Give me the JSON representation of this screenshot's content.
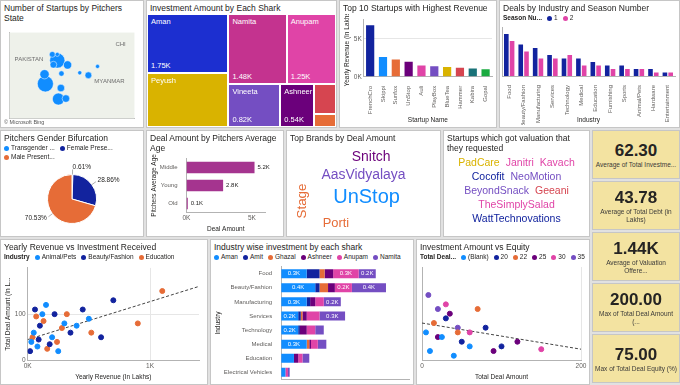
{
  "chart_data": [
    {
      "type": "bubble",
      "title": "Number of Startups by Pitchers State",
      "x": [
        77.2,
        72.9,
        77.6,
        80.3,
        88.4,
        78.5,
        75.8,
        72.6,
        75.4,
        85.3,
        91.7,
        77.2,
        78.7,
        80.9
      ],
      "values": [
        28.6,
        19.1,
        12.9,
        13.1,
        22.6,
        17.4,
        26.9,
        23.0,
        31.1,
        23.6,
        26.2,
        31.1,
        23.3,
        26.8
      ],
      "sizes": [
        40,
        45,
        25,
        10,
        8,
        10,
        8,
        15,
        6,
        3,
        3,
        3,
        5,
        12
      ],
      "color": "#118DFF",
      "xlim": [
        60,
        105
      ],
      "ylim": [
        5,
        40
      ],
      "tick_labels": false,
      "grid": false,
      "annotations": [
        {
          "text": "PAKISTAN",
          "x": 67,
          "y": 29
        },
        {
          "text": "MYANMAR",
          "x": 96,
          "y": 20
        },
        {
          "text": "CHI",
          "x": 100,
          "y": 35
        }
      ],
      "credit": "© Microsoft Bing"
    },
    {
      "type": "treemap",
      "title": "Investment Amount by Each Shark",
      "categories": [
        "Aman",
        "Peyush",
        "Namita",
        "Anupam",
        "Vineeta",
        "Ashneer",
        null,
        null
      ],
      "values": [
        1750,
        1600,
        1480,
        1250,
        820,
        540,
        240,
        100
      ],
      "value_labels": [
        "1.75K",
        null,
        "1.48K",
        "1.25K",
        "0.82K",
        "0.54K",
        null,
        null
      ],
      "colors": [
        "#1C2FD0",
        "#D9B300",
        "#C4338F",
        "#E044A7",
        "#744EC2",
        "#6B007B",
        "#D64550",
        "#E66C37"
      ],
      "data_labels": true
    },
    {
      "type": "bar",
      "title": "Top 10 Startups with Highest Revenue",
      "x_label": "Startup Name",
      "y_label": "Yearly Revenue (In Lakhs)",
      "categories": [
        "FrenchCro",
        "Skippi",
        "Sunfox",
        "UnStop",
        "Auli",
        "PlayBox",
        "BlueTea",
        "Hammer",
        "Kabira",
        "Gopal"
      ],
      "values": [
        6800,
        2600,
        2300,
        2000,
        1500,
        1400,
        1300,
        1200,
        1100,
        1000
      ],
      "colors": [
        "#12239E",
        "#118DFF",
        "#E66C37",
        "#6B007B",
        "#E044A7",
        "#744EC2",
        "#D9B300",
        "#D64550",
        "#197278",
        "#1AAB40"
      ],
      "ylim": [
        0,
        7500
      ],
      "yticks": [
        {
          "value": 0,
          "label": "0K"
        },
        {
          "value": 5000,
          "label": "5K"
        }
      ],
      "grid": true
    },
    {
      "type": "bar",
      "title": "Deals by Industry and Season Number",
      "x_label": "Industry",
      "legend": "top",
      "legend_title": "Season Nu...",
      "categories": [
        "Food",
        "Beauty/Fashion",
        "Manufacturing",
        "Services",
        "Technology",
        "Medical",
        "Education",
        "Furnishing",
        "Sports",
        "Animal/Pets",
        "Hardware",
        "Entertainment"
      ],
      "series": [
        {
          "name": "1",
          "color": "#12239E",
          "values": [
            12,
            9,
            8,
            6,
            5,
            5,
            4,
            3,
            3,
            2,
            2,
            1
          ]
        },
        {
          "name": "2",
          "color": "#E044A7",
          "values": [
            10,
            7,
            5,
            5,
            6,
            3,
            3,
            2,
            2,
            2,
            1,
            1
          ]
        }
      ],
      "ylim": [
        0,
        14
      ],
      "tick_labels": "x",
      "grid": false
    },
    {
      "type": "pie",
      "title": "Pitchers Gender Bifurcation",
      "legend": "top",
      "categories": [
        "Transgender ...",
        "Female Prese...",
        "Male Present..."
      ],
      "values": [
        0.61,
        28.86,
        70.53
      ],
      "value_labels": [
        "0.61%",
        "28.86%",
        "70.53%"
      ],
      "colors": [
        "#118DFF",
        "#12239E",
        "#E66C37"
      ],
      "data_labels": true
    },
    {
      "type": "bar",
      "orientation": "horizontal",
      "title": "Deal Amount by Pitchers Average Age",
      "x_label": "Deal Amount",
      "y_label": "Pitchers Average Age",
      "categories": [
        "Middle",
        "Young",
        "Old"
      ],
      "values": [
        5200,
        2800,
        100
      ],
      "value_labels": [
        "5.2K",
        "2.8K",
        "0.1K"
      ],
      "color": "#A5348F",
      "xlim": [
        0,
        6000
      ],
      "xticks": [
        {
          "value": 0,
          "label": "0K"
        },
        {
          "value": 5000,
          "label": "5K"
        }
      ],
      "data_labels": true,
      "grid": false
    },
    {
      "type": "scatter",
      "title": "Yearly Revenue vs Investment Received",
      "x_label": "Yearly Revenue (In Lakhs)",
      "y_label": "Total Deal Amount (In L...",
      "legend": "top",
      "legend_title": "Industry",
      "marker": "circle",
      "series": [
        {
          "name": "Animal/Pets",
          "color": "#118DFF",
          "x": [
            50,
            120,
            300,
            30,
            200,
            400,
            80,
            150,
            250,
            500
          ],
          "values": [
            60,
            100,
            80,
            40,
            50,
            75,
            30,
            120,
            20,
            90
          ]
        },
        {
          "name": "Beauty/Fashion",
          "color": "#12239E",
          "x": [
            100,
            60,
            350,
            180,
            220,
            600,
            20,
            450,
            90,
            700
          ],
          "values": [
            75,
            110,
            60,
            35,
            100,
            50,
            20,
            110,
            45,
            130
          ]
        },
        {
          "name": "Education",
          "color": "#E66C37",
          "x": [
            40,
            130,
            280,
            160,
            320,
            520,
            70,
            240,
            900,
            1100
          ],
          "values": [
            50,
            85,
            70,
            25,
            100,
            60,
            95,
            40,
            80,
            150
          ]
        }
      ],
      "trend": {
        "x": [
          0,
          1400
        ],
        "values": [
          45,
          160
        ],
        "line_style": "dashed"
      },
      "xlim": [
        0,
        1400
      ],
      "xticks": [
        {
          "value": 0,
          "label": "0K"
        },
        {
          "value": 1000,
          "label": "1K"
        }
      ],
      "ylim": [
        0,
        200
      ],
      "yticks": [
        0,
        100
      ],
      "grid": true
    },
    {
      "type": "bar",
      "orientation": "horizontal",
      "stacked": true,
      "title": "Industry wise investment by each shark",
      "y_label": "Industry",
      "legend": "top",
      "categories": [
        "Food",
        "Beauty/Fashion",
        "Manufacturing",
        "Services",
        "Technology",
        "Medical",
        "Education",
        "Electrical Vehicles"
      ],
      "series": [
        {
          "name": "Aman",
          "color": "#118DFF",
          "values": [
            300,
            400,
            300,
            200,
            200,
            300,
            150,
            50
          ],
          "value_labels": [
            "0.3K",
            "0.4K",
            "0.3K",
            "0.2K",
            "0.2K",
            "0.3K",
            null,
            null
          ]
        },
        {
          "name": "Amit",
          "color": "#12239E",
          "values": [
            150,
            50,
            40,
            30,
            20,
            0,
            0,
            0
          ],
          "value_labels": [
            null,
            null,
            null,
            null,
            null,
            null,
            null,
            null
          ]
        },
        {
          "name": "Ghazal",
          "color": "#E66C37",
          "values": [
            60,
            100,
            0,
            20,
            0,
            30,
            0,
            0
          ],
          "value_labels": [
            null,
            null,
            null,
            null,
            null,
            null,
            null,
            null
          ]
        },
        {
          "name": "Ashneer",
          "color": "#6B007B",
          "values": [
            100,
            80,
            60,
            50,
            80,
            20,
            50,
            0
          ],
          "value_labels": [
            null,
            null,
            null,
            null,
            null,
            null,
            null,
            null
          ]
        },
        {
          "name": "Anupam",
          "color": "#E044A7",
          "values": [
            300,
            200,
            100,
            150,
            100,
            80,
            50,
            30
          ],
          "value_labels": [
            "0.3K",
            "0.2K",
            null,
            null,
            null,
            null,
            null,
            null
          ]
        },
        {
          "name": "Namita",
          "color": "#744EC2",
          "values": [
            200,
            400,
            200,
            300,
            100,
            100,
            80,
            20
          ],
          "value_labels": [
            "0.2K",
            "0.4K",
            "0.2K",
            "0.3K",
            null,
            null,
            null,
            null
          ]
        }
      ],
      "xlim": [
        0,
        1500
      ],
      "tick_labels": "y",
      "data_labels": true,
      "grid": false
    },
    {
      "type": "scatter",
      "title": "Investment Amount vs Equity",
      "x_label": "Total Deal Amount",
      "legend": "top",
      "legend_title": "Total Deal...",
      "marker": "circle",
      "series": [
        {
          "name": "(Blank)",
          "color": "#118DFF",
          "x": [
            10,
            25,
            40,
            5,
            60
          ],
          "values": [
            10,
            25,
            5,
            30,
            15
          ]
        },
        {
          "name": "20",
          "color": "#12239E",
          "x": [
            50,
            80,
            100,
            30
          ],
          "values": [
            20,
            35,
            15,
            45
          ]
        },
        {
          "name": "22",
          "color": "#E66C37",
          "x": [
            15,
            45,
            70
          ],
          "values": [
            40,
            30,
            55
          ]
        },
        {
          "name": "25",
          "color": "#6B007B",
          "x": [
            20,
            35,
            90,
            120
          ],
          "values": [
            25,
            50,
            10,
            20
          ]
        },
        {
          "name": "30",
          "color": "#E044A7",
          "x": [
            30,
            60,
            150
          ],
          "values": [
            60,
            30,
            12
          ]
        },
        {
          "name": "35",
          "color": "#744EC2",
          "x": [
            8,
            20,
            45
          ],
          "values": [
            70,
            55,
            35
          ]
        }
      ],
      "trend": {
        "x": [
          0,
          200
        ],
        "values": [
          40,
          12
        ],
        "line_style": "dashed"
      },
      "xlim": [
        0,
        200
      ],
      "xticks": [
        0,
        200
      ],
      "ylim": [
        0,
        100
      ],
      "tick_labels": "x",
      "grid": true
    }
  ],
  "word_clouds": [
    {
      "title": "Top Brands by Deal Amount",
      "words": [
        {
          "text": "Snitch",
          "value": 45,
          "color": "#6B007B"
        },
        {
          "text": "AasVidyalaya",
          "value": 45,
          "color": "#744EC2"
        },
        {
          "text": "UnStop",
          "value": 100,
          "color": "#118DFF"
        },
        {
          "text": "Stage",
          "value": 40,
          "color": "#E66C37"
        },
        {
          "text": "Porti",
          "value": 35,
          "color": "#E66C37"
        }
      ]
    },
    {
      "title": "Startups which got valuation that they requested",
      "words": [
        {
          "text": "PadCare",
          "color": "#D9B300"
        },
        {
          "text": "Janitri",
          "color": "#E044A7"
        },
        {
          "text": "Kavach",
          "color": "#E044A7"
        },
        {
          "text": "Cocofit",
          "color": "#12239E"
        },
        {
          "text": "NeoMotion",
          "color": "#744EC2"
        },
        {
          "text": "BeyondSnack",
          "color": "#744EC2"
        },
        {
          "text": "Geeani",
          "color": "#D64550"
        },
        {
          "text": "TheSimplySalad",
          "color": "#E044A7"
        },
        {
          "text": "WattTechnovations",
          "color": "#12239E"
        }
      ]
    }
  ],
  "cards": [
    {
      "value": "62.30",
      "label": "Average of Total Investme..."
    },
    {
      "value": "43.78",
      "label": "Average of Total Debt (in Lakhs)"
    },
    {
      "value": "1.44K",
      "label": "Average of Valuation Offere..."
    },
    {
      "value": "200.00",
      "label": "Max of Total Deal Amount (..."
    },
    {
      "value": "75.00",
      "label": "Max of Total Deal Equity (%)"
    }
  ]
}
